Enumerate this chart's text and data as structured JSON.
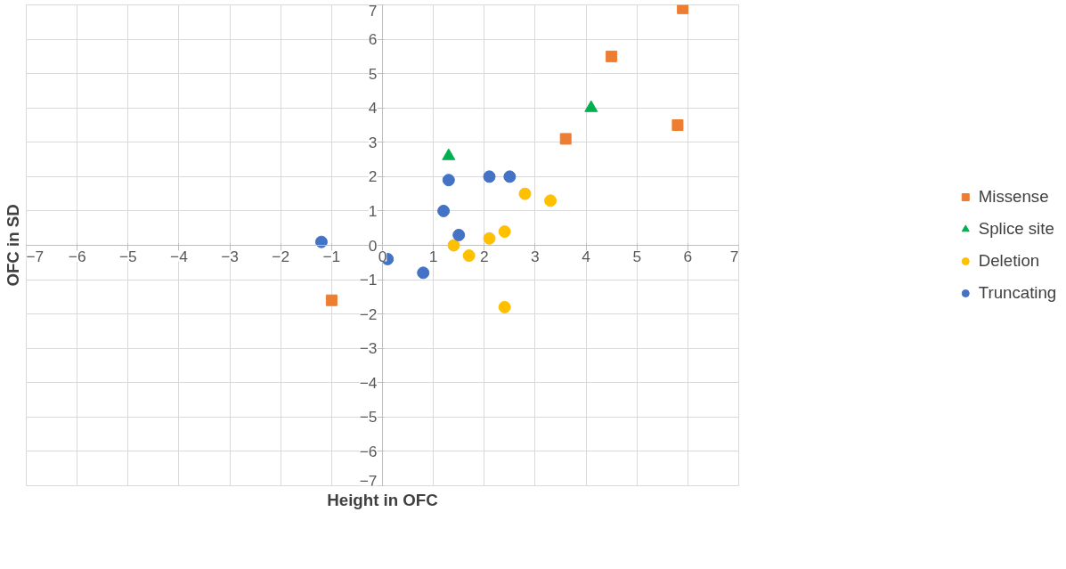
{
  "chart_data": {
    "type": "scatter",
    "xlabel": "Height in OFC",
    "ylabel": "OFC in SD",
    "xlim": [
      -7,
      7
    ],
    "ylim": [
      -7,
      7
    ],
    "xticks": [
      -7,
      -6,
      -5,
      -4,
      -3,
      -2,
      -1,
      0,
      1,
      2,
      3,
      4,
      5,
      6,
      7
    ],
    "yticks": [
      -7,
      -6,
      -5,
      -4,
      -3,
      -2,
      -1,
      0,
      1,
      2,
      3,
      4,
      5,
      6,
      7
    ],
    "grid": true,
    "legend": "right",
    "series": [
      {
        "name": "Missense",
        "color": "#ed7d31",
        "marker": "square",
        "x": [
          5.9,
          4.5,
          5.8,
          3.6,
          -1.0
        ],
        "values": [
          6.9,
          5.5,
          3.5,
          3.1,
          -1.6
        ]
      },
      {
        "name": "Splice site",
        "color": "#00b050",
        "marker": "triangle",
        "x": [
          1.3,
          4.1
        ],
        "values": [
          2.6,
          4.0
        ]
      },
      {
        "name": "Deletion",
        "color": "#ffc000",
        "marker": "circle",
        "x": [
          2.8,
          3.3,
          2.4,
          2.1,
          1.4,
          1.7,
          2.4
        ],
        "values": [
          1.5,
          1.3,
          0.4,
          0.2,
          0.0,
          -0.3,
          -1.8
        ]
      },
      {
        "name": "Truncating",
        "color": "#4472c4",
        "marker": "circle",
        "x": [
          -1.2,
          0.1,
          0.8,
          1.2,
          1.3,
          1.5,
          2.1,
          2.5
        ],
        "values": [
          0.1,
          -0.4,
          -0.8,
          1.0,
          1.9,
          0.3,
          2.0,
          2.0
        ]
      }
    ]
  }
}
